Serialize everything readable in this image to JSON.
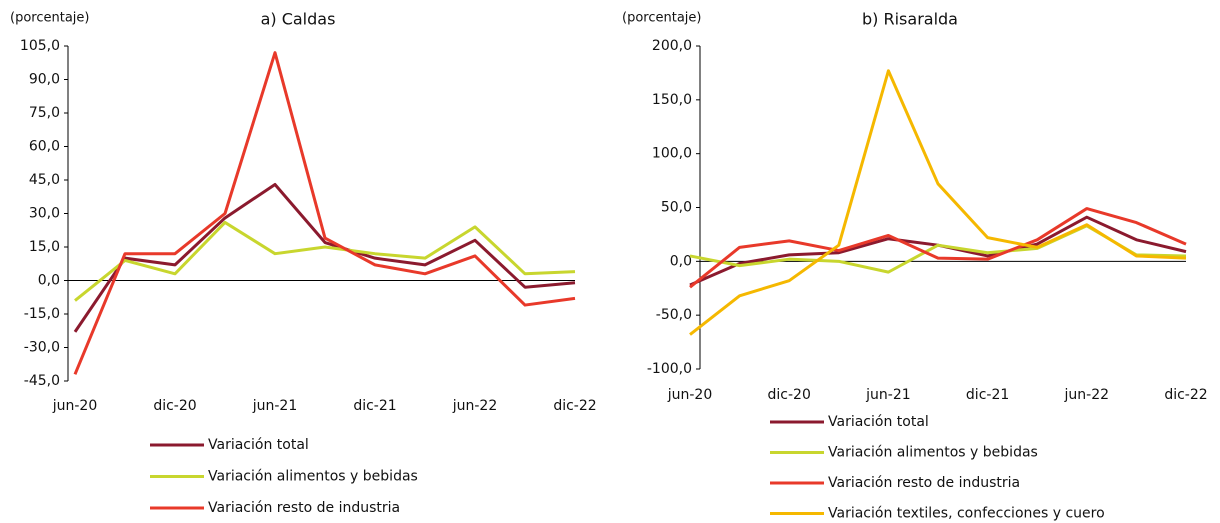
{
  "chart_data": [
    {
      "type": "line",
      "title": "a) Caldas",
      "y_label": "(porcentaje)",
      "categories": [
        "jun-20",
        null,
        "dic-20",
        null,
        "jun-21",
        null,
        "dic-21",
        null,
        "jun-22",
        null,
        "dic-22"
      ],
      "ylim": [
        -45,
        105
      ],
      "yticks": [
        {
          "value": -45,
          "label": "-45,0"
        },
        {
          "value": -30,
          "label": "-30,0"
        },
        {
          "value": -15,
          "label": "-15,0"
        },
        {
          "value": 0,
          "label": "0,0"
        },
        {
          "value": 15,
          "label": "15,0"
        },
        {
          "value": 30,
          "label": "30,0"
        },
        {
          "value": 45,
          "label": "45,0"
        },
        {
          "value": 60,
          "label": "60,0"
        },
        {
          "value": 75,
          "label": "75,0"
        },
        {
          "value": 90,
          "label": "90,0"
        },
        {
          "value": 105,
          "label": "105,0"
        }
      ],
      "series": [
        {
          "name": "Variación total",
          "color": "#8b1a2e",
          "values": [
            -23,
            10,
            7,
            28,
            43,
            17,
            10,
            7,
            18,
            -3,
            -1
          ]
        },
        {
          "name": "Variación alimentos y bebidas",
          "color": "#c8d62e",
          "values": [
            -9,
            9,
            3,
            26,
            12,
            15,
            12,
            10,
            24,
            3,
            4
          ]
        },
        {
          "name": "Variación resto de industria",
          "color": "#e8392a",
          "values": [
            -42,
            12,
            12,
            30,
            102,
            19,
            7,
            3,
            11,
            -11,
            -8
          ]
        }
      ]
    },
    {
      "type": "line",
      "title": "b) Risaralda",
      "y_label": "(porcentaje)",
      "categories": [
        "jun-20",
        null,
        "dic-20",
        null,
        "jun-21",
        null,
        "dic-21",
        null,
        "jun-22",
        null,
        "dic-22"
      ],
      "ylim": [
        -100,
        200
      ],
      "yticks": [
        {
          "value": -100,
          "label": "-100,0"
        },
        {
          "value": -50,
          "label": "-50,0"
        },
        {
          "value": 0,
          "label": "0,0"
        },
        {
          "value": 50,
          "label": "50,0"
        },
        {
          "value": 100,
          "label": "100,0"
        },
        {
          "value": 150,
          "label": "150,0"
        },
        {
          "value": 200,
          "label": "200,0"
        }
      ],
      "series": [
        {
          "name": "Variación total",
          "color": "#8b1a2e",
          "values": [
            -22,
            -2,
            6,
            8,
            21,
            15,
            5,
            16,
            41,
            20,
            9
          ]
        },
        {
          "name": "Variación alimentos y bebidas",
          "color": "#c8d62e",
          "values": [
            5,
            -4,
            2,
            0,
            -10,
            15,
            8,
            12,
            33,
            6,
            5
          ]
        },
        {
          "name": "Variación resto de industria",
          "color": "#e8392a",
          "values": [
            -24,
            13,
            19,
            10,
            24,
            3,
            2,
            20,
            49,
            36,
            16
          ]
        },
        {
          "name": "Variación textiles, confecciones y cuero",
          "color": "#f5b800",
          "values": [
            -68,
            -32,
            -18,
            15,
            177,
            72,
            22,
            13,
            34,
            5,
            3
          ]
        }
      ]
    }
  ]
}
